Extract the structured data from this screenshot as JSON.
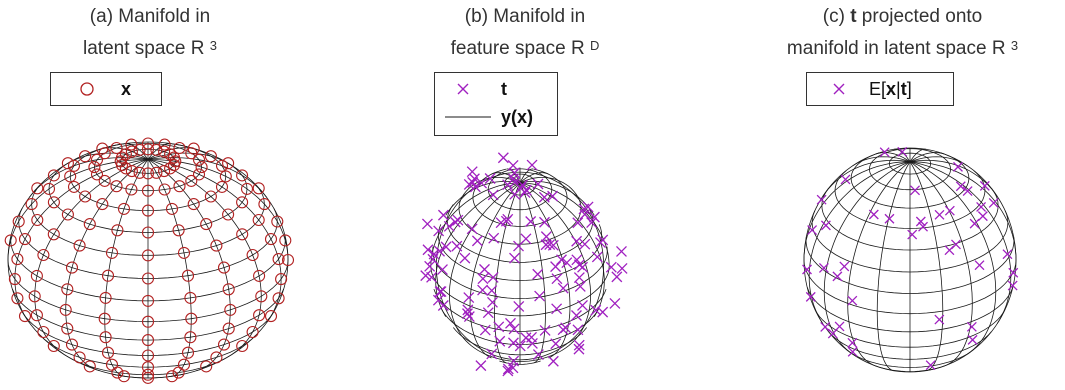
{
  "panels": [
    {
      "title_line1": "(a) Manifold in",
      "title_line2": "latent space R",
      "title_sup": "3",
      "legend": [
        {
          "label": "x",
          "marker": "circle"
        }
      ]
    },
    {
      "title_line1": "(b) Manifold in",
      "title_line2": "feature space R",
      "title_sup": "D",
      "legend": [
        {
          "label": "t",
          "marker": "cross"
        },
        {
          "label": "y(x)",
          "marker": "line"
        }
      ]
    },
    {
      "title_bold": "t",
      "title_line1": " projected onto",
      "title_prefix": "(c) ",
      "title_line2": "manifold in latent space R",
      "title_sup": "3",
      "legend_prefix": "E[",
      "legend_bold1": "x",
      "legend_sep": "|",
      "legend_bold2": "t",
      "legend_suffix": "]"
    }
  ],
  "colors": {
    "circle_marker": "#b22222",
    "cross_marker": "#a020c0",
    "mesh": "#1a1a1a",
    "text": "#333333"
  }
}
